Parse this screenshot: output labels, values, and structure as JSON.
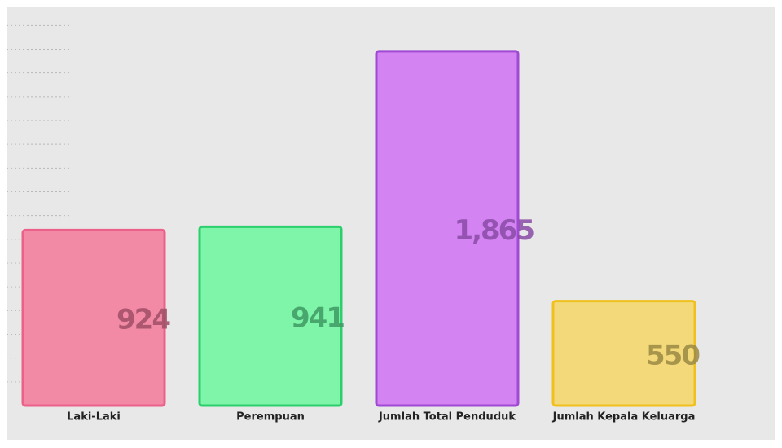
{
  "chart_data": {
    "type": "bar",
    "categories": [
      "Laki-Laki",
      "Perempuan",
      "Jumlah Total Penduduk",
      "Jumlah Kepala Keluarga"
    ],
    "values": [
      924,
      941,
      1865,
      550
    ],
    "value_labels": [
      "924",
      "941",
      "1,865",
      "550"
    ],
    "colors": [
      "#f28aa6",
      "#7ef5a9",
      "#d384f2",
      "#f3d97a"
    ],
    "border_colors": [
      "#ec6189",
      "#2ccf6c",
      "#a049d4",
      "#f0c11e"
    ],
    "label_colors": [
      "#a04e66",
      "#3f9a63",
      "#8a4ba6",
      "#9c8a45"
    ],
    "ylim": [
      0,
      2100
    ],
    "yticks": [
      125,
      250,
      375,
      500,
      625,
      750,
      875,
      1000,
      1125,
      1250,
      1375,
      1500,
      1625,
      1750,
      1875,
      2000
    ],
    "grid": true
  }
}
